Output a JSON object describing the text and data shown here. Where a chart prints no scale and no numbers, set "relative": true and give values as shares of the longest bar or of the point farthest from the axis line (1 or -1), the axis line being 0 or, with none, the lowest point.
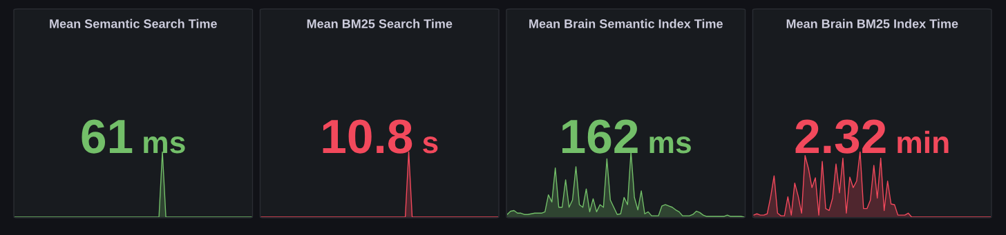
{
  "chart_data": [
    {
      "type": "area",
      "title": "Mean Semantic Search Time",
      "annotations": [
        "61",
        "ms"
      ],
      "relative": true,
      "categories": [
        null,
        null,
        null,
        null,
        null,
        null,
        null,
        null,
        null,
        null,
        null,
        null,
        null,
        null,
        null,
        null,
        null,
        null,
        null,
        null,
        null,
        null,
        null,
        null,
        null,
        null,
        null,
        null,
        null,
        null,
        null,
        null,
        null,
        null,
        null,
        null,
        null,
        null,
        null,
        null,
        null,
        null,
        null,
        null,
        null,
        null,
        null,
        null,
        null,
        null,
        null,
        null,
        null,
        null,
        null,
        null,
        null,
        null,
        null,
        null,
        null,
        null,
        null,
        null,
        null,
        null,
        null,
        null,
        null,
        null
      ],
      "series": [
        {
          "color": "#73bf69",
          "values": [
            0,
            0,
            0,
            0,
            0,
            0,
            0,
            0,
            0,
            0,
            0,
            0,
            0,
            0,
            0,
            0,
            0,
            0,
            0,
            0,
            0,
            0,
            0,
            0,
            0,
            0,
            0,
            0,
            0,
            0,
            0,
            0,
            0,
            0,
            0,
            0,
            0,
            0,
            0,
            0,
            0,
            0,
            0,
            1,
            0,
            0,
            0,
            0,
            0,
            0,
            0,
            0,
            0,
            0,
            0,
            0,
            0,
            0,
            0,
            0,
            0,
            0,
            0,
            0,
            0,
            0,
            0,
            0,
            0,
            0
          ]
        }
      ]
    },
    {
      "type": "area",
      "title": "Mean BM25 Search Time",
      "annotations": [
        "10.8",
        "s"
      ],
      "relative": true,
      "categories": [
        null,
        null,
        null,
        null,
        null,
        null,
        null,
        null,
        null,
        null,
        null,
        null,
        null,
        null,
        null,
        null,
        null,
        null,
        null,
        null,
        null,
        null,
        null,
        null,
        null,
        null,
        null,
        null,
        null,
        null,
        null,
        null,
        null,
        null,
        null,
        null,
        null,
        null,
        null,
        null,
        null,
        null,
        null,
        null,
        null,
        null,
        null,
        null,
        null,
        null,
        null,
        null,
        null,
        null,
        null,
        null,
        null,
        null,
        null,
        null,
        null,
        null,
        null,
        null,
        null,
        null,
        null,
        null,
        null,
        null
      ],
      "series": [
        {
          "color": "#f2495c",
          "values": [
            0,
            0,
            0,
            0,
            0,
            0,
            0,
            0,
            0,
            0,
            0,
            0,
            0,
            0,
            0,
            0,
            0,
            0,
            0,
            0,
            0,
            0,
            0,
            0,
            0,
            0,
            0,
            0,
            0,
            0,
            0,
            0,
            0,
            0,
            0,
            0,
            0,
            0,
            0,
            0,
            0,
            0,
            0,
            1,
            0,
            0,
            0,
            0,
            0,
            0,
            0,
            0,
            0,
            0,
            0,
            0,
            0,
            0,
            0,
            0,
            0,
            0,
            0,
            0,
            0,
            0,
            0,
            0,
            0,
            0
          ]
        }
      ]
    },
    {
      "type": "area",
      "title": "Mean Brain Semantic Index Time",
      "annotations": [
        "162",
        "ms"
      ],
      "relative": true,
      "categories": [
        null,
        null,
        null,
        null,
        null,
        null,
        null,
        null,
        null,
        null,
        null,
        null,
        null,
        null,
        null,
        null,
        null,
        null,
        null,
        null,
        null,
        null,
        null,
        null,
        null,
        null,
        null,
        null,
        null,
        null,
        null,
        null,
        null,
        null,
        null,
        null,
        null,
        null,
        null,
        null,
        null,
        null,
        null,
        null,
        null,
        null,
        null,
        null,
        null,
        null,
        null,
        null,
        null,
        null,
        null,
        null,
        null,
        null,
        null,
        null,
        null,
        null,
        null,
        null,
        null,
        null,
        null,
        null,
        null,
        null
      ],
      "series": [
        {
          "color": "#73bf69",
          "values": [
            0.04,
            0.09,
            0.1,
            0.06,
            0.06,
            0.04,
            0.04,
            0.05,
            0.06,
            0.06,
            0.06,
            0.08,
            0.34,
            0.23,
            0.75,
            0.15,
            0.15,
            0.57,
            0.15,
            0.26,
            0.77,
            0.19,
            0.15,
            0.43,
            0.08,
            0.28,
            0.08,
            0.19,
            0.15,
            0.89,
            0.26,
            0.15,
            0.04,
            0.05,
            0.3,
            0.19,
            1,
            0.3,
            0.11,
            0.4,
            0.05,
            0.08,
            0.02,
            0.02,
            0.02,
            0.17,
            0.19,
            0.17,
            0.15,
            0.11,
            0.08,
            0.02,
            0.02,
            0.02,
            0.04,
            0.09,
            0.07,
            0.03,
            0.01,
            0.01,
            0.01,
            0.01,
            0.01,
            0.01,
            0.03,
            0.01,
            0.01,
            0.01,
            0.01,
            0
          ]
        }
      ]
    },
    {
      "type": "area",
      "title": "Mean Brain BM25 Index Time",
      "annotations": [
        "2.32",
        "min"
      ],
      "relative": true,
      "categories": [
        null,
        null,
        null,
        null,
        null,
        null,
        null,
        null,
        null,
        null,
        null,
        null,
        null,
        null,
        null,
        null,
        null,
        null,
        null,
        null,
        null,
        null,
        null,
        null,
        null,
        null,
        null,
        null,
        null,
        null,
        null,
        null,
        null,
        null,
        null,
        null,
        null,
        null,
        null,
        null,
        null,
        null,
        null,
        null,
        null,
        null,
        null,
        null,
        null,
        null,
        null,
        null,
        null,
        null,
        null,
        null,
        null,
        null,
        null,
        null,
        null,
        null,
        null,
        null,
        null,
        null,
        null,
        null,
        null,
        null
      ],
      "series": [
        {
          "color": "#f2495c",
          "values": [
            0.03,
            0.05,
            0.03,
            0.03,
            0.05,
            0.31,
            0.63,
            0.06,
            0.02,
            0.02,
            0.31,
            0.03,
            0.52,
            0.32,
            0.06,
            0.94,
            0.74,
            0.45,
            0.6,
            0.03,
            0.85,
            0.13,
            0.1,
            0.29,
            0.81,
            0.37,
            0.9,
            0.06,
            0.61,
            0.45,
            0.55,
            1,
            0.13,
            0.13,
            0.26,
            0.79,
            0.29,
            0.9,
            0.1,
            0.55,
            0.2,
            0.19,
            0.03,
            0.03,
            0.03,
            0.06,
            0,
            0,
            0,
            0,
            0,
            0,
            0,
            0,
            0,
            0,
            0,
            0,
            0,
            0,
            0,
            0,
            0,
            0,
            0,
            0,
            0,
            0,
            0,
            0
          ]
        }
      ]
    }
  ]
}
